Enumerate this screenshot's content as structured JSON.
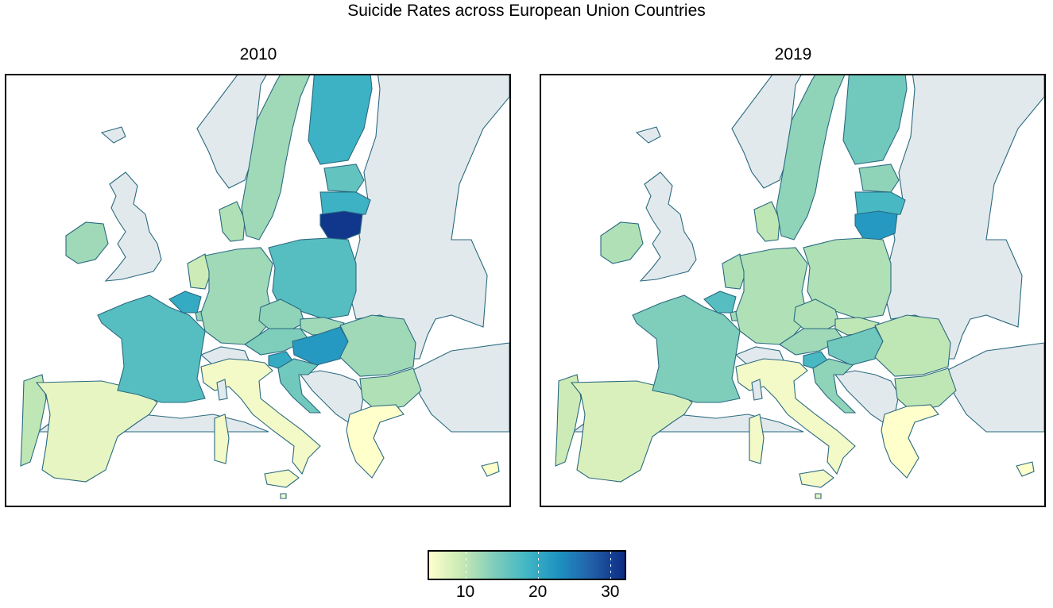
{
  "title": "Suicide Rates across European Union Countries",
  "panels": [
    {
      "label": "2010",
      "key": "y2010"
    },
    {
      "label": "2019",
      "key": "y2019"
    }
  ],
  "legend": {
    "ticks": [
      "10",
      "20",
      "30"
    ],
    "tick_values": [
      10,
      20,
      30
    ],
    "range": [
      5,
      32
    ],
    "colors": [
      "#ffffcc",
      "#c7e9b4",
      "#7fcdbb",
      "#41b6c4",
      "#1d91c0",
      "#225ea8",
      "#0c2c84"
    ]
  },
  "colors": {
    "non_eu": "#e2e9ec",
    "sea": "#ffffff",
    "border": "#2a6a80",
    "frame": "#000000"
  },
  "chart_data": {
    "type": "choropleth",
    "title": "Suicide Rates across European Union Countries",
    "colorscale": "YlGnBu",
    "range": [
      5,
      32
    ],
    "years": [
      "2010",
      "2019"
    ],
    "values": {
      "Portugal": {
        "2010": 10,
        "2019": 9
      },
      "Spain": {
        "2010": 7,
        "2019": 8
      },
      "France": {
        "2010": 17,
        "2019": 14
      },
      "Belgium": {
        "2010": 20,
        "2019": 17
      },
      "Netherlands": {
        "2010": 9,
        "2019": 11
      },
      "Germany": {
        "2010": 12,
        "2019": 11
      },
      "Denmark": {
        "2010": 11,
        "2019": 10
      },
      "Ireland": {
        "2010": 12,
        "2019": 11
      },
      "Sweden": {
        "2010": 12,
        "2019": 13
      },
      "Finland": {
        "2010": 19,
        "2019": 15
      },
      "Estonia": {
        "2010": 16,
        "2019": 13
      },
      "Latvia": {
        "2010": 19,
        "2019": 18
      },
      "Lithuania": {
        "2010": 31,
        "2019": 22
      },
      "Poland": {
        "2010": 17,
        "2019": 11
      },
      "Czechia": {
        "2010": 13,
        "2019": 11
      },
      "Slovakia": {
        "2010": 12,
        "2019": 10
      },
      "Austria": {
        "2010": 14,
        "2019": 12
      },
      "Hungary": {
        "2010": 22,
        "2019": 15
      },
      "Slovenia": {
        "2010": 20,
        "2019": 18
      },
      "Croatia": {
        "2010": 15,
        "2019": 13
      },
      "Romania": {
        "2010": 12,
        "2019": 10
      },
      "Bulgaria": {
        "2010": 11,
        "2019": 10
      },
      "Italy": {
        "2010": 6,
        "2019": 6
      },
      "Greece": {
        "2010": 5,
        "2019": 5
      },
      "Cyprus": {
        "2010": 5,
        "2019": 5
      },
      "Malta": {
        "2010": 6,
        "2019": 7
      },
      "Luxembourg": {
        "2010": 13,
        "2019": 12
      }
    }
  }
}
